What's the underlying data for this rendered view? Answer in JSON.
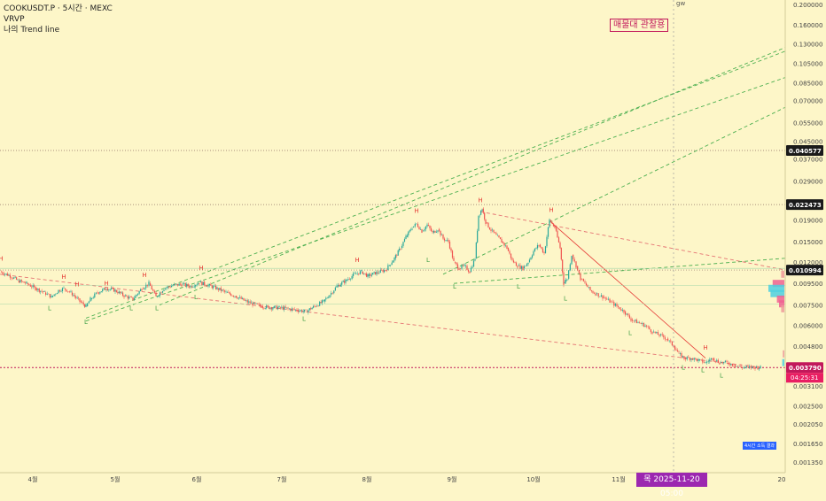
{
  "legend": {
    "symbol_line": "COOKUSDT.P · 5시간 · MEXC",
    "indicator_1": "VRVP",
    "indicator_2": "나의 Trend line"
  },
  "top_label": "gw",
  "alert_badge": "매물대 관찰용",
  "crosshair_time_label": "목 2025-11-20   05:00",
  "small_tag": "4시간 소득 결과",
  "colors": {
    "background": "#fdf6c8",
    "up_candle": "#26a69a",
    "down_candle": "#ef5350",
    "trend_up": "#4caf50",
    "trend_down": "#e57373",
    "current_price": "#c2185b",
    "label_h": "#e53935",
    "label_l": "#43a047"
  },
  "chart_data": {
    "type": "candlestick",
    "y_scale": "log",
    "ylim": [
      0.0012,
      0.2
    ],
    "x_tick_labels": [
      "4월",
      "5월",
      "6월",
      "7월",
      "8월",
      "9월",
      "10월",
      "11월",
      "20"
    ],
    "y_tick_labels": [
      "0.200000",
      "0.160000",
      "0.130000",
      "0.105000",
      "0.085000",
      "0.070000",
      "0.055000",
      "0.045000",
      "0.037000",
      "0.029000",
      "0.019000",
      "0.015000",
      "0.012000",
      "0.009500",
      "0.007500",
      "0.006000",
      "0.004800",
      "0.003100",
      "0.002500",
      "0.002050",
      "0.001650",
      "0.001350"
    ],
    "y_tick_values": [
      0.2,
      0.16,
      0.13,
      0.105,
      0.085,
      0.07,
      0.055,
      0.045,
      0.037,
      0.029,
      0.019,
      0.015,
      0.012,
      0.0095,
      0.0075,
      0.006,
      0.0048,
      0.0031,
      0.0025,
      0.00205,
      0.00165,
      0.00135
    ],
    "price_markers": [
      {
        "label": "0.040577",
        "value": 0.040577,
        "style": "dark"
      },
      {
        "label": "0.022473",
        "value": 0.022473,
        "style": "dark"
      },
      {
        "label": "0.010994",
        "value": 0.010994,
        "style": "dark"
      },
      {
        "label": "0.003790",
        "value": 0.00379,
        "style": "current",
        "countdown": "04:25:31"
      }
    ],
    "price_path": [
      [
        0,
        0.0108
      ],
      [
        10,
        0.0104
      ],
      [
        20,
        0.0098
      ],
      [
        30,
        0.0095
      ],
      [
        40,
        0.009
      ],
      [
        50,
        0.0086
      ],
      [
        58,
        0.0082
      ],
      [
        66,
        0.0088
      ],
      [
        72,
        0.009
      ],
      [
        80,
        0.0086
      ],
      [
        90,
        0.0078
      ],
      [
        97,
        0.0074
      ],
      [
        102,
        0.008
      ],
      [
        110,
        0.0086
      ],
      [
        120,
        0.009
      ],
      [
        130,
        0.0088
      ],
      [
        140,
        0.0083
      ],
      [
        150,
        0.008
      ],
      [
        160,
        0.009
      ],
      [
        168,
        0.0095
      ],
      [
        176,
        0.0082
      ],
      [
        185,
        0.009
      ],
      [
        195,
        0.0093
      ],
      [
        205,
        0.0094
      ],
      [
        215,
        0.0092
      ],
      [
        225,
        0.0096
      ],
      [
        235,
        0.0093
      ],
      [
        245,
        0.009
      ],
      [
        255,
        0.0086
      ],
      [
        265,
        0.0083
      ],
      [
        275,
        0.0079
      ],
      [
        285,
        0.0076
      ],
      [
        295,
        0.0074
      ],
      [
        305,
        0.0073
      ],
      [
        315,
        0.0073
      ],
      [
        325,
        0.0072
      ],
      [
        335,
        0.0071
      ],
      [
        345,
        0.007
      ],
      [
        355,
        0.0074
      ],
      [
        365,
        0.0078
      ],
      [
        372,
        0.0084
      ],
      [
        380,
        0.0092
      ],
      [
        390,
        0.0098
      ],
      [
        400,
        0.0105
      ],
      [
        408,
        0.0108
      ],
      [
        415,
        0.0103
      ],
      [
        425,
        0.0107
      ],
      [
        435,
        0.011
      ],
      [
        445,
        0.0125
      ],
      [
        452,
        0.014
      ],
      [
        458,
        0.0158
      ],
      [
        465,
        0.0175
      ],
      [
        470,
        0.0182
      ],
      [
        476,
        0.0168
      ],
      [
        482,
        0.018
      ],
      [
        488,
        0.0165
      ],
      [
        494,
        0.0172
      ],
      [
        500,
        0.0155
      ],
      [
        506,
        0.015
      ],
      [
        512,
        0.012
      ],
      [
        518,
        0.0112
      ],
      [
        524,
        0.0115
      ],
      [
        530,
        0.0108
      ],
      [
        536,
        0.0125
      ],
      [
        540,
        0.02
      ],
      [
        544,
        0.0215
      ],
      [
        548,
        0.0185
      ],
      [
        554,
        0.017
      ],
      [
        560,
        0.016
      ],
      [
        566,
        0.015
      ],
      [
        572,
        0.014
      ],
      [
        578,
        0.0122
      ],
      [
        584,
        0.0115
      ],
      [
        590,
        0.0112
      ],
      [
        596,
        0.012
      ],
      [
        602,
        0.0135
      ],
      [
        608,
        0.0145
      ],
      [
        614,
        0.0132
      ],
      [
        620,
        0.019
      ],
      [
        626,
        0.0175
      ],
      [
        632,
        0.014
      ],
      [
        636,
        0.0095
      ],
      [
        640,
        0.01
      ],
      [
        645,
        0.013
      ],
      [
        650,
        0.0115
      ],
      [
        655,
        0.01
      ],
      [
        660,
        0.0095
      ],
      [
        666,
        0.0088
      ],
      [
        672,
        0.0085
      ],
      [
        680,
        0.0082
      ],
      [
        688,
        0.0078
      ],
      [
        696,
        0.0074
      ],
      [
        704,
        0.007
      ],
      [
        712,
        0.0064
      ],
      [
        720,
        0.0062
      ],
      [
        728,
        0.006
      ],
      [
        736,
        0.0056
      ],
      [
        744,
        0.0054
      ],
      [
        752,
        0.0052
      ],
      [
        760,
        0.0048
      ],
      [
        766,
        0.0044
      ],
      [
        772,
        0.0042
      ],
      [
        780,
        0.0042
      ],
      [
        788,
        0.0041
      ],
      [
        796,
        0.004
      ],
      [
        804,
        0.0042
      ],
      [
        812,
        0.004
      ],
      [
        820,
        0.004
      ],
      [
        828,
        0.0039
      ],
      [
        836,
        0.0038
      ],
      [
        844,
        0.0038
      ],
      [
        852,
        0.0038
      ],
      [
        858,
        0.00379
      ]
    ],
    "pivot_labels": [
      {
        "text": "H",
        "x": 1,
        "y": 0.0122
      },
      {
        "text": "H",
        "x": 72,
        "y": 0.01
      },
      {
        "text": "H",
        "x": 87,
        "y": 0.0092
      },
      {
        "text": "H",
        "x": 120,
        "y": 0.0093
      },
      {
        "text": "H",
        "x": 163,
        "y": 0.0102
      },
      {
        "text": "H",
        "x": 227,
        "y": 0.011
      },
      {
        "text": "H",
        "x": 403,
        "y": 0.012
      },
      {
        "text": "H",
        "x": 470,
        "y": 0.0205
      },
      {
        "text": "H",
        "x": 542,
        "y": 0.023
      },
      {
        "text": "H",
        "x": 622,
        "y": 0.0207
      },
      {
        "text": "H",
        "x": 796,
        "y": 0.0046
      },
      {
        "text": "L",
        "x": 56,
        "y": 0.0071
      },
      {
        "text": "L",
        "x": 97,
        "y": 0.0061
      },
      {
        "text": "L",
        "x": 148,
        "y": 0.0071
      },
      {
        "text": "L",
        "x": 177,
        "y": 0.0071
      },
      {
        "text": "L",
        "x": 221,
        "y": 0.008
      },
      {
        "text": "L",
        "x": 343,
        "y": 0.0063
      },
      {
        "text": "L",
        "x": 483,
        "y": 0.012
      },
      {
        "text": "L",
        "x": 513,
        "y": 0.009
      },
      {
        "text": "L",
        "x": 585,
        "y": 0.009
      },
      {
        "text": "L",
        "x": 638,
        "y": 0.0079
      },
      {
        "text": "L",
        "x": 711,
        "y": 0.0054
      },
      {
        "text": "L",
        "x": 771,
        "y": 0.0037
      },
      {
        "text": "L",
        "x": 793,
        "y": 0.0036
      },
      {
        "text": "L",
        "x": 814,
        "y": 0.0034
      }
    ],
    "trend_lines": [
      {
        "kind": "up",
        "from": [
          97,
          0.0065
        ],
        "to": [
          886,
          0.12
        ]
      },
      {
        "kind": "up",
        "from": [
          97,
          0.0063
        ],
        "to": [
          886,
          0.09
        ]
      },
      {
        "kind": "up",
        "from": [
          500,
          0.0105
        ],
        "to": [
          886,
          0.065
        ]
      },
      {
        "kind": "up",
        "from": [
          180,
          0.0075
        ],
        "to": [
          886,
          0.125
        ]
      },
      {
        "kind": "up",
        "from": [
          512,
          0.0095
        ],
        "to": [
          886,
          0.0125
        ]
      },
      {
        "kind": "down",
        "from": [
          0,
          0.0105
        ],
        "to": [
          858,
          0.0038
        ]
      },
      {
        "kind": "down",
        "from": [
          542,
          0.0208
        ],
        "to": [
          886,
          0.011
        ]
      },
      {
        "kind": "down-solid",
        "from": [
          622,
          0.0185
        ],
        "to": [
          796,
          0.0042
        ]
      },
      {
        "kind": "level",
        "from": [
          0,
          0.0112
        ],
        "to": [
          886,
          0.0112
        ]
      },
      {
        "kind": "level",
        "from": [
          0,
          0.0093
        ],
        "to": [
          886,
          0.0093
        ]
      },
      {
        "kind": "level",
        "from": [
          0,
          0.0076
        ],
        "to": [
          886,
          0.0076
        ]
      }
    ],
    "volume_profile": [
      {
        "price": 0.0105,
        "size": 6,
        "color": "#ef9a9a"
      },
      {
        "price": 0.0095,
        "size": 22,
        "color": "#f06292"
      },
      {
        "price": 0.009,
        "size": 30,
        "color": "#4dd0e1"
      },
      {
        "price": 0.0085,
        "size": 26,
        "color": "#4dd0e1"
      },
      {
        "price": 0.008,
        "size": 14,
        "color": "#f06292"
      },
      {
        "price": 0.0076,
        "size": 10,
        "color": "#f06292"
      },
      {
        "price": 0.0072,
        "size": 6,
        "color": "#ef9a9a"
      },
      {
        "price": 0.0044,
        "size": 3,
        "color": "#ef9a9a"
      },
      {
        "price": 0.004,
        "size": 4,
        "color": "#4dd0e1"
      }
    ]
  }
}
